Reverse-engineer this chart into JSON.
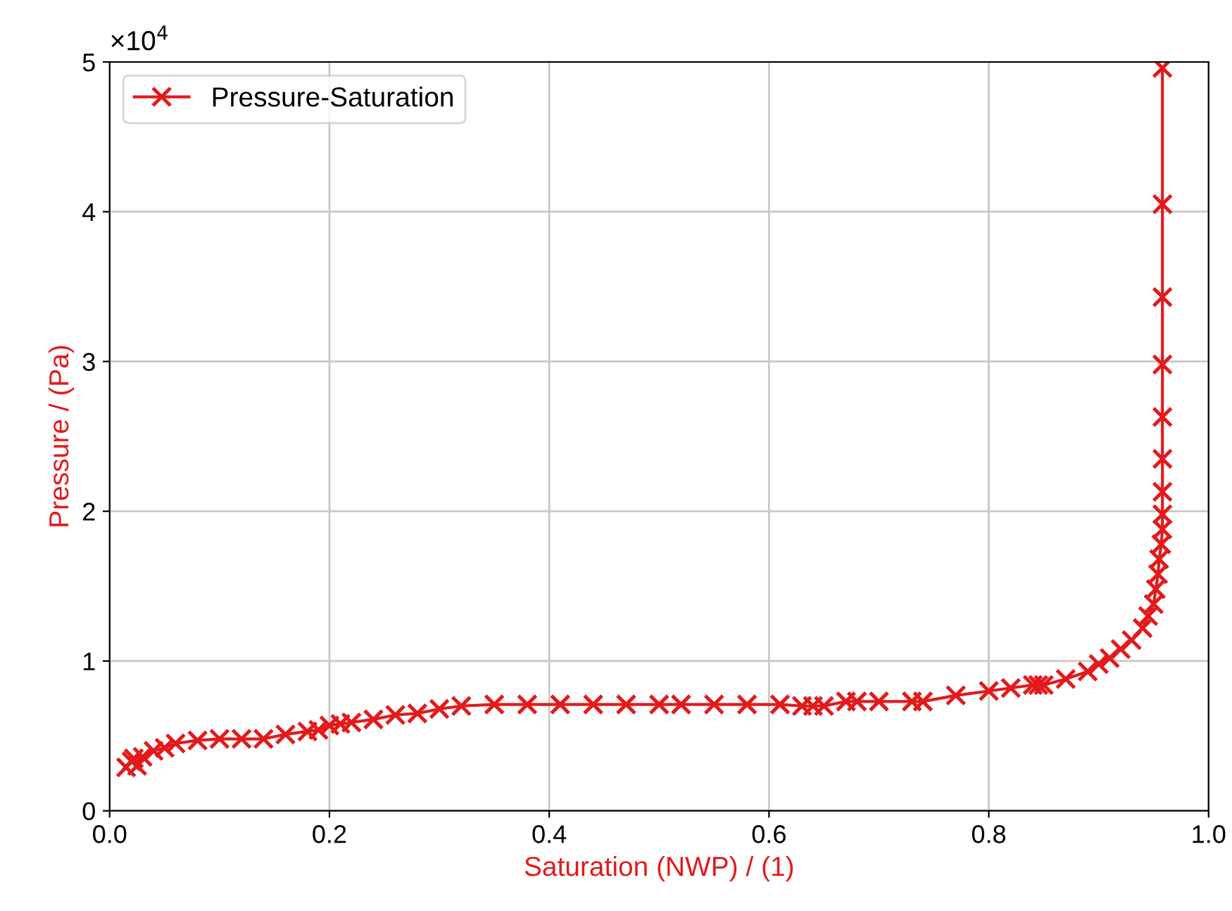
{
  "chart_data": {
    "type": "line",
    "xlabel": "Saturation (NWP) / (1)",
    "ylabel": "Pressure / (Pa)",
    "annotations": [
      "×10$^{4}$"
    ],
    "xlim": [
      0,
      1
    ],
    "xticks": [
      {
        "value": 0,
        "label": "0.0"
      },
      0.2,
      0.4,
      0.6,
      0.8,
      {
        "value": 1,
        "label": "1.0"
      }
    ],
    "ylim": [
      0,
      5
    ],
    "yticks": [
      0,
      1,
      2,
      3,
      4,
      5
    ],
    "grid": true,
    "legend": "top left",
    "marker": "cross",
    "line_style": "solid",
    "series": [
      {
        "name": "Pressure-Saturation",
        "color": "#e31a1c",
        "x": [
          0.015,
          0.02,
          0.025,
          0.022,
          0.03,
          0.04,
          0.05,
          0.06,
          0.08,
          0.1,
          0.12,
          0.14,
          0.16,
          0.18,
          0.19,
          0.2,
          0.21,
          0.22,
          0.24,
          0.26,
          0.28,
          0.3,
          0.32,
          0.35,
          0.38,
          0.41,
          0.44,
          0.47,
          0.5,
          0.52,
          0.55,
          0.58,
          0.61,
          0.63,
          0.64,
          0.65,
          0.67,
          0.68,
          0.7,
          0.73,
          0.74,
          0.77,
          0.8,
          0.82,
          0.84,
          0.845,
          0.85,
          0.87,
          0.89,
          0.9,
          0.91,
          0.92,
          0.93,
          0.94,
          0.945,
          0.95,
          0.952,
          0.954,
          0.955,
          0.957,
          0.958,
          0.958,
          0.958,
          0.958,
          0.958,
          0.958,
          0.958,
          0.958,
          0.958
        ],
        "values": [
          0.29,
          0.33,
          0.3,
          0.35,
          0.36,
          0.4,
          0.42,
          0.45,
          0.47,
          0.48,
          0.48,
          0.48,
          0.51,
          0.53,
          0.54,
          0.57,
          0.58,
          0.59,
          0.61,
          0.64,
          0.65,
          0.68,
          0.7,
          0.71,
          0.71,
          0.71,
          0.71,
          0.71,
          0.71,
          0.71,
          0.71,
          0.71,
          0.71,
          0.7,
          0.7,
          0.7,
          0.73,
          0.73,
          0.73,
          0.73,
          0.73,
          0.77,
          0.8,
          0.82,
          0.84,
          0.84,
          0.84,
          0.88,
          0.93,
          0.98,
          1.02,
          1.08,
          1.14,
          1.22,
          1.3,
          1.38,
          1.48,
          1.58,
          1.68,
          1.78,
          1.88,
          1.98,
          2.13,
          2.35,
          2.63,
          2.98,
          3.43,
          4.05,
          4.96
        ]
      }
    ]
  }
}
